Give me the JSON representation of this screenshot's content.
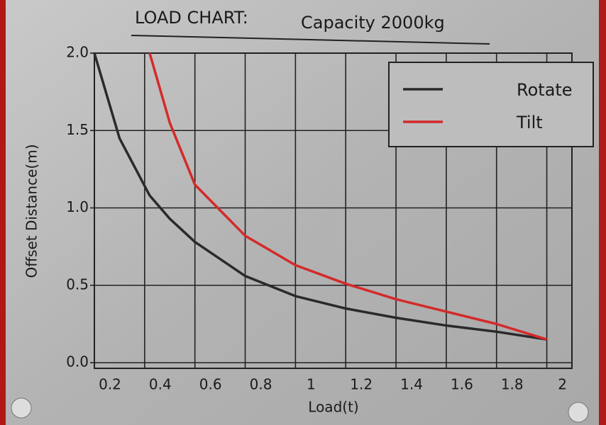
{
  "chart_data": {
    "type": "line",
    "title": "LOAD CHART:",
    "subtitle": "Capacity 2000kg",
    "x_label": "Load(t)",
    "y_label": "Offset Distance(m)",
    "x": [
      0.2,
      0.3,
      0.42,
      0.5,
      0.6,
      0.8,
      1.0,
      1.2,
      1.4,
      1.6,
      1.8,
      2.0
    ],
    "series": [
      {
        "name": "Rotate",
        "color": "#2a2a2a",
        "values": [
          2.0,
          1.45,
          1.08,
          0.93,
          0.78,
          0.56,
          0.43,
          0.35,
          0.29,
          0.24,
          0.2,
          0.15
        ]
      },
      {
        "name": "Tilt",
        "color": "#d42a2a",
        "values": [
          null,
          null,
          2.0,
          1.55,
          1.15,
          0.82,
          0.63,
          0.51,
          0.41,
          0.33,
          0.25,
          0.15
        ]
      }
    ],
    "xlim": [
      0.2,
      2.1
    ],
    "ylim": [
      0,
      2
    ],
    "xticks": [
      0.2,
      0.4,
      0.6,
      0.8,
      1,
      1.2,
      1.4,
      1.6,
      1.8,
      2
    ],
    "yticks": [
      {
        "value": 0,
        "label": "0.0"
      },
      0.5,
      {
        "value": 1,
        "label": "1.0"
      },
      1.5,
      {
        "value": 2,
        "label": "2.0"
      }
    ],
    "grid": true,
    "legend": "upper right"
  }
}
